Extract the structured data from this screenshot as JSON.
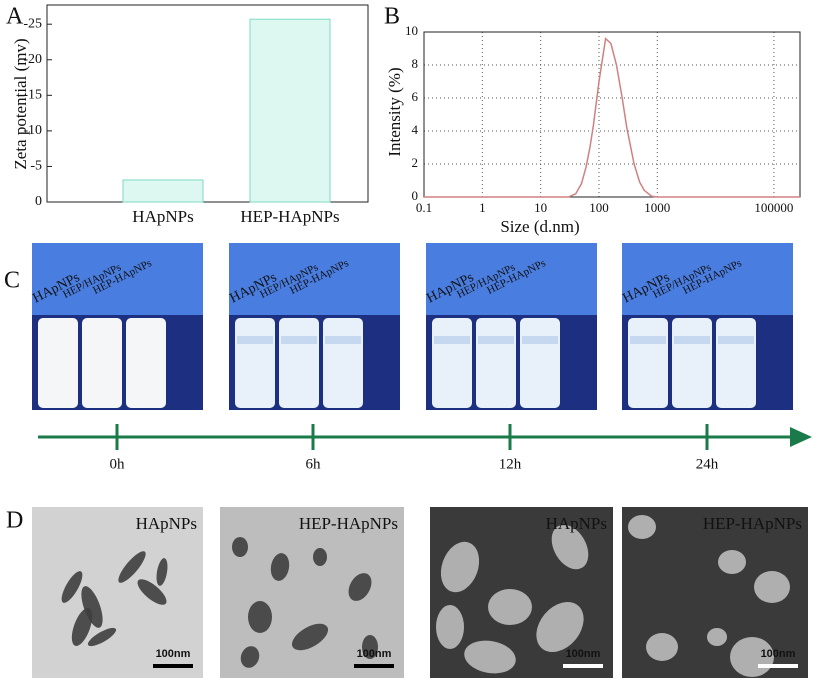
{
  "chart_data": [
    {
      "type": "bar",
      "panel": "A",
      "y_label": "Zeta potential (mv)",
      "categories": [
        "HApNPs",
        "HEP-HApNPs"
      ],
      "values": [
        -3.1,
        -25.7
      ],
      "color": "#dcf8f0",
      "edge_color": "#7ed9c3",
      "ylim": [
        0,
        -27.7
      ],
      "yticks": [
        0,
        -5,
        -10,
        -15,
        -20,
        -25
      ]
    },
    {
      "type": "line",
      "panel": "B",
      "x_label": "Size (d.nm)",
      "y_label": "Intensity (%)",
      "x": [
        0.1,
        30,
        40,
        50,
        60,
        70,
        80,
        100,
        130,
        160,
        200,
        250,
        300,
        400,
        500,
        600,
        800,
        1000,
        280000
      ],
      "series": [
        {
          "color": "#d08080",
          "values": [
            0,
            0,
            0.2,
            0.8,
            1.8,
            3.0,
            4.3,
            7.0,
            9.6,
            9.3,
            8.0,
            6.0,
            4.2,
            2.0,
            0.9,
            0.4,
            0.05,
            0,
            0
          ]
        }
      ],
      "log_x": true,
      "grid": true,
      "xlim": [
        0.1,
        280000
      ],
      "xticks": [
        0.1,
        1,
        10,
        100,
        1000,
        100000
      ],
      "ylim": [
        0,
        10
      ],
      "yticks": [
        0,
        2,
        4,
        6,
        8,
        10
      ]
    }
  ],
  "panel_c": {
    "label": "C",
    "photos": [
      {
        "labels": [
          "HApNPs",
          "HEP/HApNPs",
          "HEP-HApNPs"
        ],
        "time": "0h"
      },
      {
        "labels": [
          "HApNPs",
          "HEP/HApNPs",
          "HEP-HApNPs"
        ],
        "time": "6h"
      },
      {
        "labels": [
          "HApNPs",
          "HEP/HApNPs",
          "HEP-HApNPs"
        ],
        "time": "12h"
      },
      {
        "labels": [
          "HApNPs",
          "HEP/HApNPs",
          "HEP-HApNPs"
        ],
        "time": "24h"
      }
    ]
  },
  "panel_d": {
    "label": "D",
    "images": [
      {
        "label": "HApNPs",
        "scale_bar": "100nm"
      },
      {
        "label": "HEP-HApNPs",
        "scale_bar": "100nm"
      },
      {
        "label": "HApNPs",
        "scale_bar": "100nm"
      },
      {
        "label": "HEP-HApNPs",
        "scale_bar": "100nm"
      }
    ]
  }
}
